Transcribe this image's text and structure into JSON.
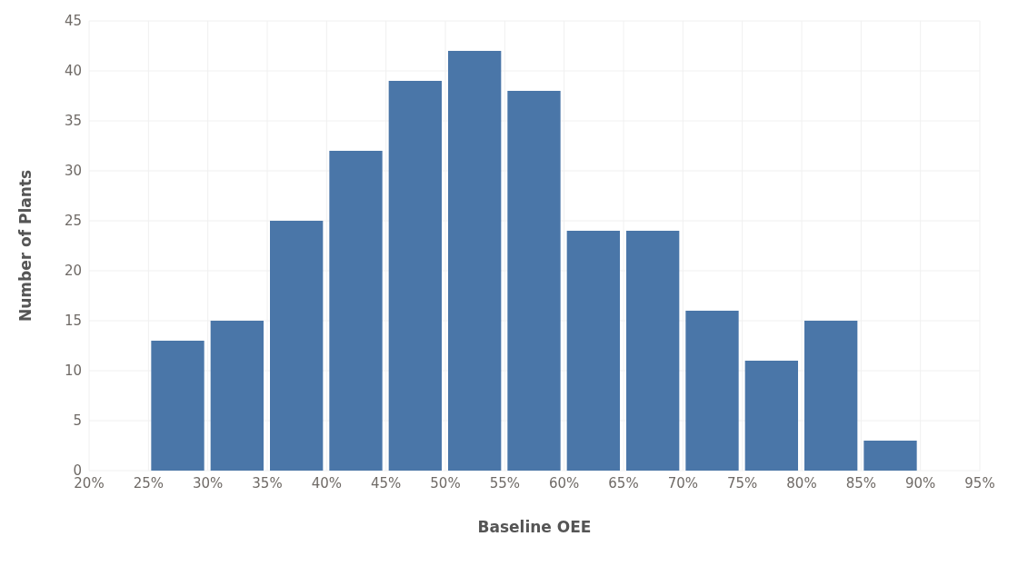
{
  "chart_data": {
    "type": "histogram",
    "xlabel": "Baseline OEE",
    "ylabel": "Number of Plants",
    "bins": [
      25,
      30,
      35,
      40,
      45,
      50,
      55,
      60,
      65,
      70,
      75,
      80,
      85,
      90
    ],
    "values": [
      13,
      15,
      25,
      32,
      39,
      42,
      38,
      24,
      24,
      16,
      11,
      15,
      3
    ],
    "color": "#4a76a8",
    "xlim": [
      20,
      95
    ],
    "xticks": [
      {
        "value": 20,
        "label": "20%"
      },
      {
        "value": 25,
        "label": "25%"
      },
      {
        "value": 30,
        "label": "30%"
      },
      {
        "value": 35,
        "label": "35%"
      },
      {
        "value": 40,
        "label": "40%"
      },
      {
        "value": 45,
        "label": "45%"
      },
      {
        "value": 50,
        "label": "50%"
      },
      {
        "value": 55,
        "label": "55%"
      },
      {
        "value": 60,
        "label": "60%"
      },
      {
        "value": 65,
        "label": "65%"
      },
      {
        "value": 70,
        "label": "70%"
      },
      {
        "value": 75,
        "label": "75%"
      },
      {
        "value": 80,
        "label": "80%"
      },
      {
        "value": 85,
        "label": "85%"
      },
      {
        "value": 90,
        "label": "90%"
      },
      {
        "value": 95,
        "label": "95%"
      }
    ],
    "ylim": [
      0,
      45
    ],
    "yticks": [
      0,
      5,
      10,
      15,
      20,
      25,
      30,
      35,
      40,
      45
    ],
    "grid": true
  }
}
